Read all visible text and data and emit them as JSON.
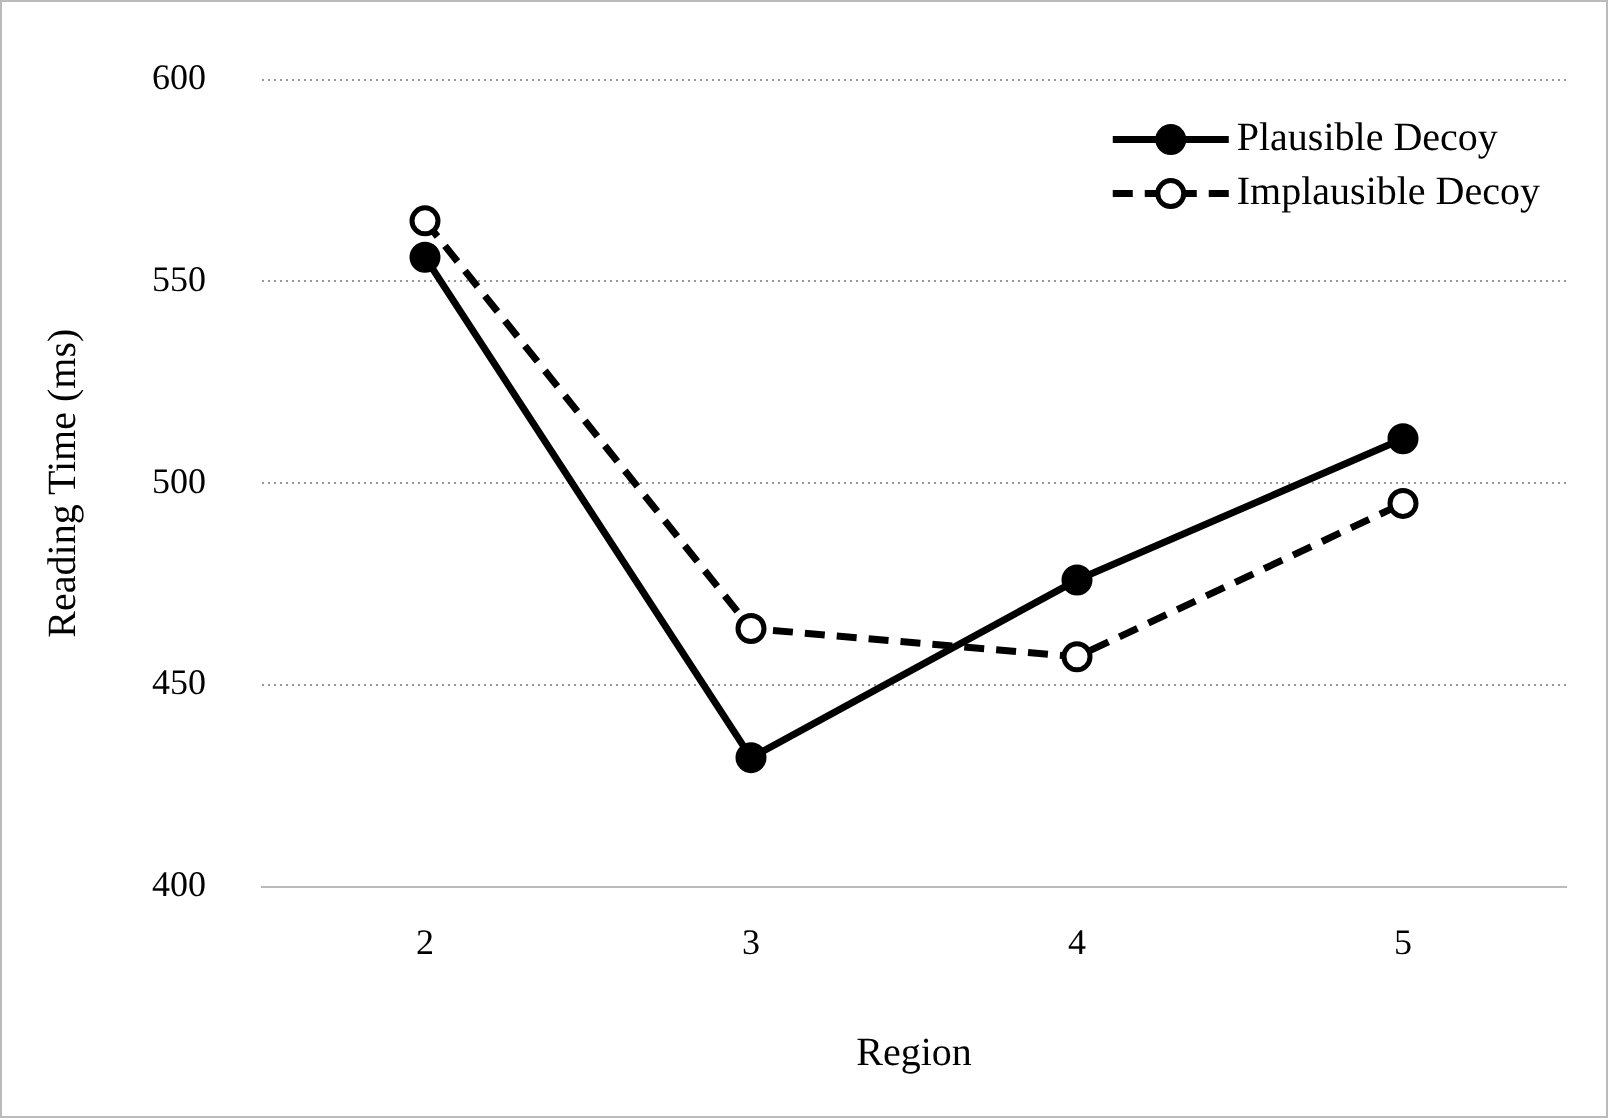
{
  "chart_data": {
    "type": "line",
    "xlabel": "Region",
    "ylabel": "Reading Time (ms)",
    "categories": [
      "2",
      "3",
      "4",
      "5"
    ],
    "series": [
      {
        "name": "Plausible Decoy",
        "color": "#000000",
        "values": [
          556,
          432,
          476,
          511
        ],
        "marker": "circle",
        "line_style": "solid"
      },
      {
        "name": "Implausible Decoy",
        "color": "#000000",
        "values": [
          565,
          464,
          457,
          495
        ],
        "marker": "circle",
        "line_style": "dashed"
      }
    ],
    "ylim": [
      400,
      600
    ],
    "yticks": [
      400,
      450,
      500,
      550,
      600
    ],
    "grid": "y",
    "legend": "top right"
  }
}
